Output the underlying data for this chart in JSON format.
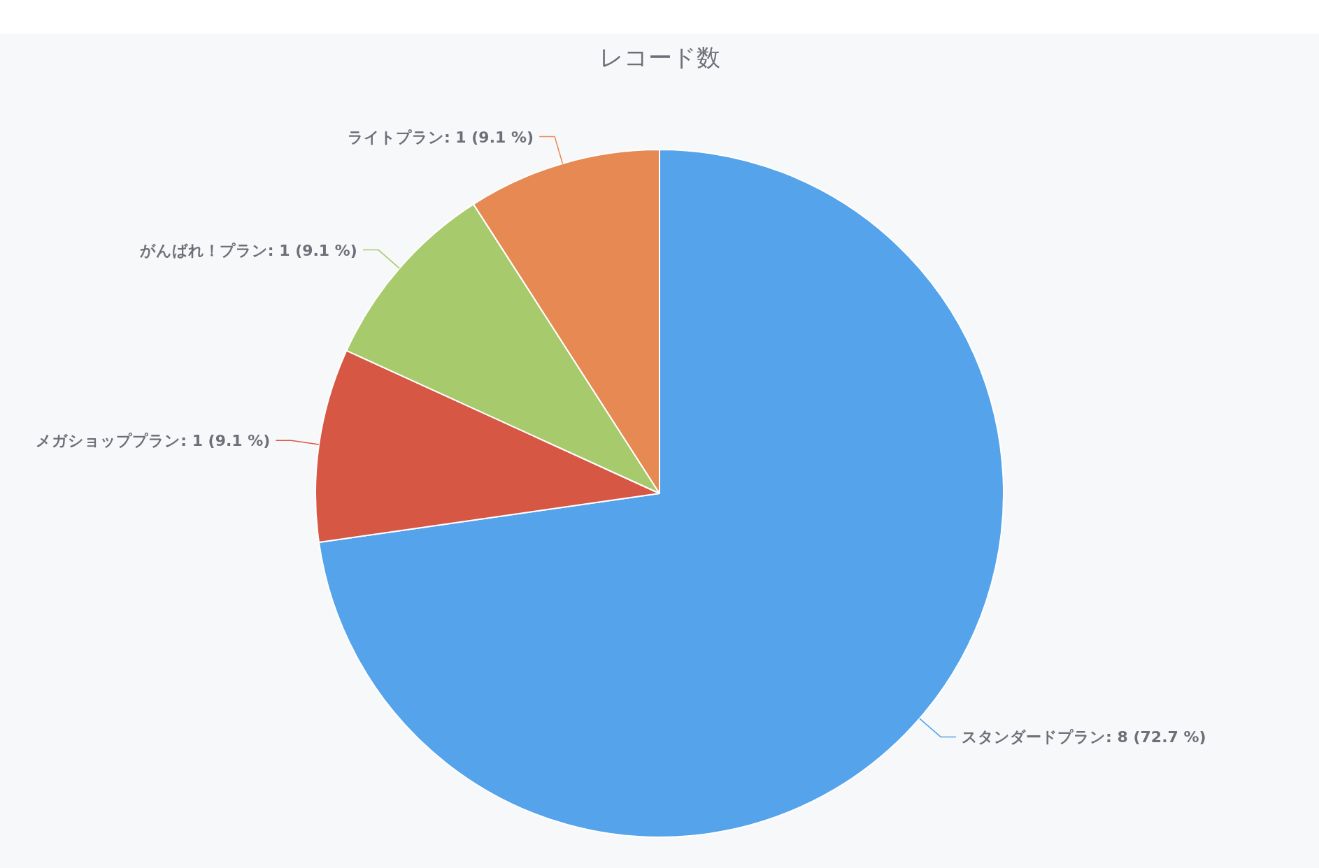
{
  "chart_data": {
    "type": "pie",
    "title": "レコード数",
    "categories": [
      "スタンダードプラン",
      "メガショッププラン",
      "がんばれ！プラン",
      "ライトプラン"
    ],
    "values": [
      8,
      1,
      1,
      1
    ],
    "value_labels": [
      ": 8 (72.7 %)",
      ": 1 (9.1 %)",
      ": 1 (9.1 %)",
      ": 1 (9.1 %)"
    ],
    "colors": [
      "#55a3eb",
      "#d75745",
      "#a7ca6c",
      "#e68952"
    ],
    "legend": false
  }
}
